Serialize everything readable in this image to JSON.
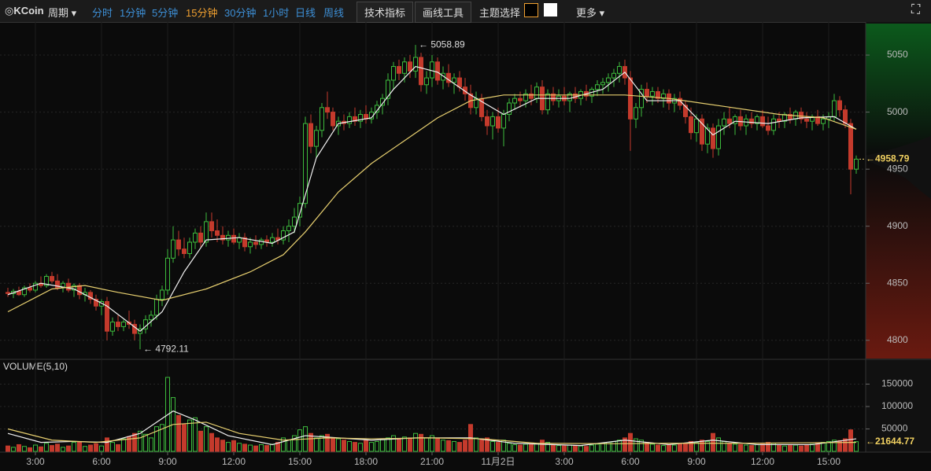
{
  "toolbar": {
    "logo": "KCoin",
    "period": "周期",
    "intervals": [
      "分时",
      "1分钟",
      "5分钟",
      "15分钟",
      "30分钟",
      "1小时",
      "日线",
      "周线"
    ],
    "active": 3,
    "active_color": "#f0a030",
    "buttons": [
      "技术指标",
      "画线工具"
    ],
    "theme": "主题选择",
    "more": "更多"
  },
  "chart_data": {
    "type": "candlestick",
    "volume_title": "VOLUME(5,10)",
    "up_color": "#3dbb3d",
    "down_color": "#c43a2c",
    "categories": [
      null,
      null,
      null,
      null,
      null,
      "3:00",
      null,
      null,
      null,
      null,
      null,
      null,
      null,
      null,
      null,
      null,
      null,
      "6:00",
      null,
      null,
      null,
      null,
      null,
      null,
      null,
      null,
      null,
      null,
      null,
      "9:00",
      null,
      null,
      null,
      null,
      null,
      null,
      null,
      null,
      null,
      null,
      null,
      "12:00",
      null,
      null,
      null,
      null,
      null,
      null,
      null,
      null,
      null,
      null,
      null,
      "15:00",
      null,
      null,
      null,
      null,
      null,
      null,
      null,
      null,
      null,
      null,
      null,
      "18:00",
      null,
      null,
      null,
      null,
      null,
      null,
      null,
      null,
      null,
      null,
      null,
      "21:00",
      null,
      null,
      null,
      null,
      null,
      null,
      null,
      null,
      null,
      null,
      null,
      "11月2日",
      null,
      null,
      null,
      null,
      null,
      null,
      null,
      null,
      null,
      null,
      null,
      "3:00",
      null,
      null,
      null,
      null,
      null,
      null,
      null,
      null,
      null,
      null,
      null,
      "6:00",
      null,
      null,
      null,
      null,
      null,
      null,
      null,
      null,
      null,
      null,
      null,
      "9:00",
      null,
      null,
      null,
      null,
      null,
      null,
      null,
      null,
      null,
      null,
      null,
      "12:00",
      null,
      null,
      null,
      null,
      null,
      null,
      null,
      null,
      null,
      null,
      null,
      "15:00",
      null,
      null,
      null,
      null,
      null
    ],
    "candles": [
      [
        4842,
        4846,
        4838,
        4841,
        12000
      ],
      [
        4841,
        4845,
        4837,
        4843,
        9000
      ],
      [
        4843,
        4847,
        4839,
        4840,
        15000
      ],
      [
        4840,
        4848,
        4838,
        4846,
        11000
      ],
      [
        4846,
        4850,
        4842,
        4844,
        8000
      ],
      [
        4844,
        4852,
        4842,
        4850,
        14000
      ],
      [
        4850,
        4856,
        4846,
        4848,
        10000
      ],
      [
        4848,
        4858,
        4846,
        4856,
        18000
      ],
      [
        4856,
        4860,
        4850,
        4852,
        13000
      ],
      [
        4852,
        4858,
        4844,
        4846,
        16000
      ],
      [
        4846,
        4852,
        4842,
        4850,
        9000
      ],
      [
        4850,
        4854,
        4842,
        4844,
        12000
      ],
      [
        4844,
        4850,
        4838,
        4848,
        20000
      ],
      [
        4848,
        4850,
        4836,
        4840,
        22000
      ],
      [
        4840,
        4846,
        4834,
        4842,
        11000
      ],
      [
        4842,
        4844,
        4832,
        4836,
        14000
      ],
      [
        4836,
        4840,
        4826,
        4830,
        17000
      ],
      [
        4830,
        4836,
        4822,
        4834,
        12000
      ],
      [
        4834,
        4838,
        4800,
        4808,
        30000
      ],
      [
        4808,
        4820,
        4804,
        4816,
        20000
      ],
      [
        4816,
        4822,
        4808,
        4812,
        15000
      ],
      [
        4812,
        4818,
        4808,
        4816,
        28000
      ],
      [
        4816,
        4826,
        4810,
        4814,
        33000
      ],
      [
        4814,
        4818,
        4800,
        4806,
        40000
      ],
      [
        4806,
        4814,
        4792.11,
        4810,
        45000
      ],
      [
        4810,
        4822,
        4806,
        4818,
        38000
      ],
      [
        4818,
        4826,
        4812,
        4822,
        30000
      ],
      [
        4822,
        4840,
        4818,
        4836,
        55000
      ],
      [
        4836,
        4848,
        4830,
        4844,
        60000
      ],
      [
        4844,
        4880,
        4840,
        4872,
        165000
      ],
      [
        4872,
        4900,
        4868,
        4888,
        120000
      ],
      [
        4888,
        4896,
        4874,
        4880,
        80000
      ],
      [
        4880,
        4890,
        4872,
        4876,
        60000
      ],
      [
        4876,
        4890,
        4872,
        4886,
        70000
      ],
      [
        4886,
        4898,
        4880,
        4894,
        75000
      ],
      [
        4894,
        4900,
        4882,
        4886,
        45000
      ],
      [
        4886,
        4912,
        4882,
        4904,
        55000
      ],
      [
        4904,
        4912,
        4890,
        4896,
        40000
      ],
      [
        4896,
        4906,
        4886,
        4892,
        30000
      ],
      [
        4892,
        4900,
        4884,
        4888,
        25000
      ],
      [
        4888,
        4896,
        4882,
        4892,
        20000
      ],
      [
        4892,
        4898,
        4884,
        4886,
        24000
      ],
      [
        4886,
        4894,
        4880,
        4890,
        18000
      ],
      [
        4890,
        4894,
        4878,
        4882,
        16000
      ],
      [
        4882,
        4890,
        4876,
        4886,
        14000
      ],
      [
        4886,
        4892,
        4880,
        4884,
        12000
      ],
      [
        4884,
        4890,
        4880,
        4888,
        15000
      ],
      [
        4888,
        4892,
        4882,
        4886,
        13000
      ],
      [
        4886,
        4894,
        4882,
        4890,
        16000
      ],
      [
        4890,
        4898,
        4884,
        4888,
        20000
      ],
      [
        4888,
        4900,
        4884,
        4896,
        30000
      ],
      [
        4896,
        4906,
        4886,
        4900,
        25000
      ],
      [
        4900,
        4916,
        4894,
        4908,
        35000
      ],
      [
        4908,
        4926,
        4900,
        4920,
        48000
      ],
      [
        4920,
        4996,
        4916,
        4990,
        55000
      ],
      [
        4990,
        4998,
        4964,
        4970,
        40000
      ],
      [
        4970,
        4988,
        4960,
        4984,
        30000
      ],
      [
        4984,
        5008,
        4978,
        5004,
        35000
      ],
      [
        5004,
        5018,
        4994,
        5000,
        38000
      ],
      [
        5000,
        5004,
        4984,
        4988,
        30000
      ],
      [
        4988,
        4996,
        4980,
        4992,
        28000
      ],
      [
        4992,
        4998,
        4984,
        4990,
        25000
      ],
      [
        4990,
        5000,
        4986,
        4996,
        22000
      ],
      [
        4996,
        5004,
        4988,
        4992,
        20000
      ],
      [
        4992,
        5002,
        4986,
        4998,
        18000
      ],
      [
        4998,
        5006,
        4990,
        4994,
        24000
      ],
      [
        4994,
        5004,
        4990,
        5000,
        20000
      ],
      [
        5000,
        5010,
        4994,
        5006,
        22000
      ],
      [
        5006,
        5016,
        4998,
        5012,
        26000
      ],
      [
        5012,
        5034,
        5006,
        5028,
        30000
      ],
      [
        5028,
        5044,
        5020,
        5040,
        35000
      ],
      [
        5040,
        5046,
        5028,
        5034,
        28000
      ],
      [
        5034,
        5048,
        5026,
        5044,
        32000
      ],
      [
        5044,
        5050,
        5030,
        5036,
        30000
      ],
      [
        5036,
        5058.89,
        5030,
        5048,
        40000
      ],
      [
        5048,
        5052,
        5018,
        5024,
        38000
      ],
      [
        5024,
        5036,
        5016,
        5030,
        30000
      ],
      [
        5030,
        5050,
        5022,
        5044,
        35000
      ],
      [
        5044,
        5048,
        5024,
        5028,
        28000
      ],
      [
        5028,
        5040,
        5020,
        5034,
        25000
      ],
      [
        5034,
        5042,
        5022,
        5026,
        24000
      ],
      [
        5026,
        5034,
        5016,
        5030,
        22000
      ],
      [
        5030,
        5036,
        5018,
        5022,
        20000
      ],
      [
        5022,
        5030,
        5010,
        5016,
        25000
      ],
      [
        5016,
        5024,
        4998,
        5004,
        60000
      ],
      [
        5004,
        5018,
        4998,
        5012,
        30000
      ],
      [
        5012,
        5016,
        4992,
        4996,
        28000
      ],
      [
        4996,
        5002,
        4980,
        4988,
        30000
      ],
      [
        4988,
        5000,
        4976,
        4996,
        22000
      ],
      [
        4996,
        5004,
        4982,
        4986,
        20000
      ],
      [
        4986,
        5002,
        4970,
        4998,
        25000
      ],
      [
        4998,
        5012,
        4992,
        5008,
        18000
      ],
      [
        5008,
        5016,
        5002,
        5012,
        15000
      ],
      [
        5012,
        5018,
        5004,
        5010,
        14000
      ],
      [
        5010,
        5020,
        5004,
        5016,
        16000
      ],
      [
        5016,
        5024,
        5006,
        5012,
        15000
      ],
      [
        5012,
        5026,
        5008,
        5022,
        18000
      ],
      [
        5022,
        5028,
        4998,
        5002,
        25000
      ],
      [
        5002,
        5020,
        4998,
        5016,
        20000
      ],
      [
        5016,
        5022,
        5006,
        5010,
        14000
      ],
      [
        5010,
        5020,
        5004,
        5014,
        13000
      ],
      [
        5014,
        5022,
        5006,
        5010,
        12000
      ],
      [
        5010,
        5018,
        5000,
        5016,
        14000
      ],
      [
        5016,
        5022,
        5008,
        5012,
        13000
      ],
      [
        5012,
        5020,
        5006,
        5018,
        12000
      ],
      [
        5018,
        5024,
        5010,
        5014,
        11000
      ],
      [
        5014,
        5022,
        5008,
        5020,
        14000
      ],
      [
        5020,
        5028,
        5014,
        5024,
        16000
      ],
      [
        5024,
        5030,
        5016,
        5026,
        18000
      ],
      [
        5026,
        5034,
        5018,
        5030,
        20000
      ],
      [
        5030,
        5038,
        5022,
        5034,
        22000
      ],
      [
        5034,
        5044,
        5026,
        5040,
        25000
      ],
      [
        5040,
        5046,
        5024,
        5030,
        30000
      ],
      [
        5030,
        5036,
        4966,
        4994,
        40000
      ],
      [
        4994,
        5008,
        4986,
        5004,
        28000
      ],
      [
        5004,
        5024,
        4996,
        5020,
        25000
      ],
      [
        5020,
        5026,
        5008,
        5014,
        20000
      ],
      [
        5014,
        5022,
        5006,
        5018,
        16000
      ],
      [
        5018,
        5022,
        5008,
        5012,
        14000
      ],
      [
        5012,
        5020,
        5004,
        5016,
        13000
      ],
      [
        5016,
        5020,
        5002,
        5008,
        15000
      ],
      [
        5008,
        5016,
        5000,
        5012,
        14000
      ],
      [
        5012,
        5018,
        5002,
        5006,
        16000
      ],
      [
        5006,
        5010,
        4990,
        4996,
        18000
      ],
      [
        4996,
        5004,
        4976,
        4982,
        22000
      ],
      [
        4982,
        4998,
        4974,
        4994,
        20000
      ],
      [
        4994,
        4998,
        4966,
        4972,
        25000
      ],
      [
        4972,
        4990,
        4964,
        4986,
        22000
      ],
      [
        4986,
        4990,
        4960,
        4968,
        40000
      ],
      [
        4968,
        4994,
        4962,
        4988,
        30000
      ],
      [
        4988,
        5000,
        4980,
        4994,
        22000
      ],
      [
        4994,
        5004,
        4986,
        4990,
        18000
      ],
      [
        4990,
        4998,
        4980,
        4996,
        16000
      ],
      [
        4996,
        5002,
        4984,
        4988,
        15000
      ],
      [
        4988,
        4998,
        4980,
        4994,
        14000
      ],
      [
        4994,
        5000,
        4986,
        4990,
        13000
      ],
      [
        4990,
        4998,
        4984,
        4996,
        15000
      ],
      [
        4996,
        5002,
        4986,
        4988,
        16000
      ],
      [
        4988,
        4996,
        4980,
        4984,
        20000
      ],
      [
        4984,
        4998,
        4980,
        4994,
        18000
      ],
      [
        4994,
        5000,
        4986,
        4992,
        14000
      ],
      [
        4992,
        5000,
        4986,
        4998,
        12000
      ],
      [
        4998,
        5004,
        4990,
        4994,
        13000
      ],
      [
        4994,
        5002,
        4988,
        5000,
        14000
      ],
      [
        5000,
        5004,
        4990,
        4994,
        12000
      ],
      [
        4994,
        5000,
        4986,
        4992,
        15000
      ],
      [
        4992,
        4998,
        4984,
        4996,
        16000
      ],
      [
        4996,
        5002,
        4988,
        4990,
        18000
      ],
      [
        4990,
        4998,
        4984,
        4994,
        20000
      ],
      [
        4994,
        5000,
        4986,
        4996,
        22000
      ],
      [
        4996,
        5016,
        4992,
        5010,
        25000
      ],
      [
        5010,
        5014,
        4996,
        5002,
        24000
      ],
      [
        5002,
        5006,
        4986,
        4990,
        28000
      ],
      [
        4990,
        4994,
        4928,
        4950,
        48000
      ],
      [
        4950,
        4962,
        4946,
        4958.79,
        21644.77
      ]
    ],
    "price_ma": [
      {
        "color": "#f0f0f0",
        "x": [
          0,
          6,
          12,
          18,
          24,
          28,
          32,
          36,
          42,
          48,
          52,
          56,
          60,
          66,
          70,
          74,
          78,
          84,
          90,
          96,
          102,
          108,
          112,
          116,
          122,
          128,
          132,
          138,
          144,
          150,
          154
        ],
        "values": [
          4840,
          4850,
          4845,
          4830,
          4808,
          4825,
          4860,
          4888,
          4890,
          4885,
          4895,
          4960,
          4990,
          4995,
          5020,
          5040,
          5035,
          5015,
          4998,
          5012,
          5012,
          5020,
          5035,
          5010,
          5010,
          4980,
          4992,
          4990,
          4995,
          4996,
          4985
        ]
      },
      {
        "color": "#e8d070",
        "x": [
          0,
          8,
          14,
          20,
          28,
          36,
          44,
          50,
          54,
          60,
          66,
          72,
          78,
          84,
          90,
          100,
          112,
          120,
          130,
          140,
          148,
          154
        ],
        "values": [
          4825,
          4845,
          4848,
          4842,
          4835,
          4845,
          4860,
          4875,
          4895,
          4930,
          4955,
          4975,
          4995,
          5010,
          5015,
          5015,
          5015,
          5012,
          5005,
          4998,
          4995,
          4985
        ]
      }
    ],
    "volume_ma": [
      {
        "color": "#f0f0f0",
        "x": [
          0,
          6,
          12,
          18,
          24,
          30,
          34,
          40,
          48,
          54,
          60,
          66,
          74,
          84,
          92,
          104,
          112,
          120,
          128,
          136,
          146,
          154
        ],
        "values": [
          40000,
          20000,
          22000,
          20000,
          40000,
          90000,
          70000,
          35000,
          15000,
          35000,
          30000,
          25000,
          30000,
          30000,
          18000,
          13000,
          25000,
          15000,
          25000,
          15000,
          15000,
          28000
        ]
      },
      {
        "color": "#e8d070",
        "x": [
          0,
          8,
          16,
          24,
          30,
          36,
          42,
          50,
          58,
          66,
          76,
          86,
          96,
          110,
          120,
          134,
          154
        ],
        "values": [
          50000,
          25000,
          20000,
          30000,
          60000,
          65000,
          40000,
          25000,
          30000,
          28000,
          30000,
          28000,
          18000,
          17000,
          18000,
          18000,
          20000
        ]
      }
    ],
    "price_labels": [
      {
        "value": 5058.89,
        "label": "← 5058.89"
      },
      {
        "value": 4792.11,
        "label": "← 4792.11"
      }
    ],
    "last_price": {
      "value": 4958.79,
      "label": "←4958.79"
    },
    "last_volume": {
      "value": 21644.77,
      "label": "←21644.77"
    },
    "ylim": [
      4784,
      5077.6
    ],
    "yticks": [
      4800,
      4850,
      4900,
      4950,
      5000,
      5050
    ],
    "vlim": [
      0,
      203500
    ],
    "vticks": [
      50000,
      100000,
      150000
    ],
    "grid": true
  }
}
